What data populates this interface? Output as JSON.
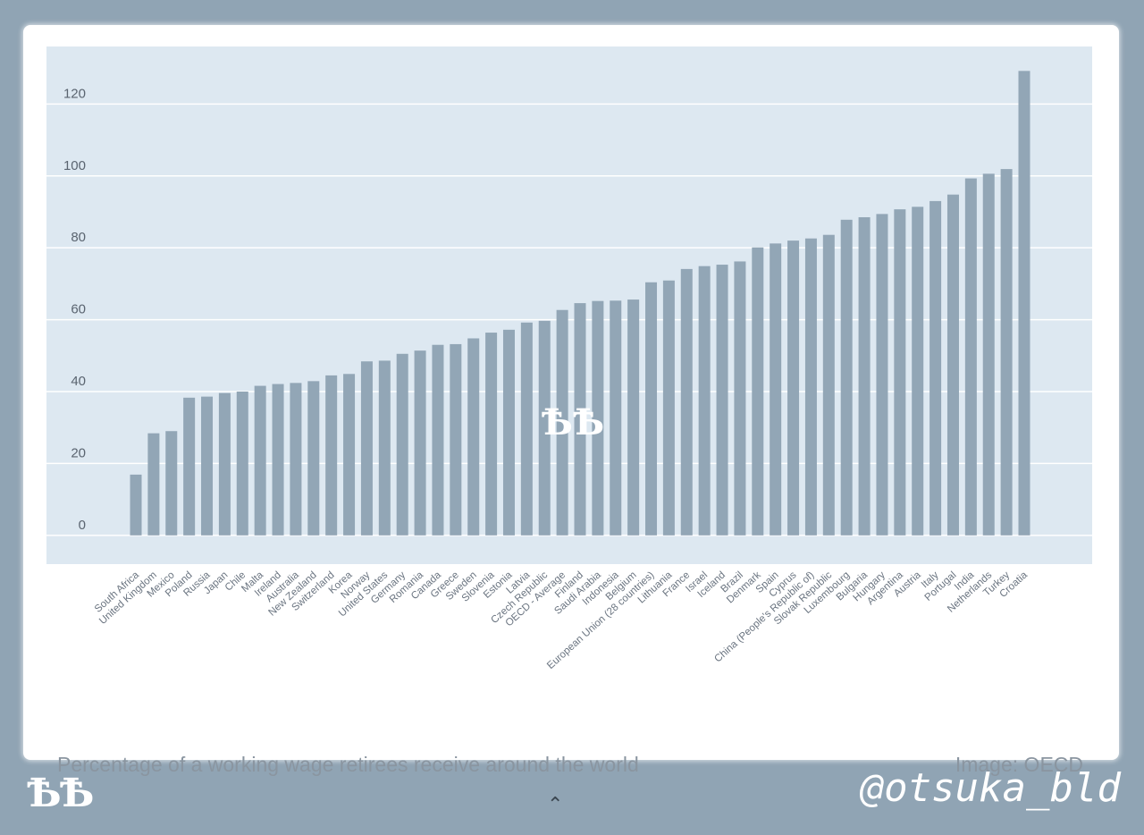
{
  "chart_data": {
    "type": "bar",
    "title": "",
    "xlabel": "",
    "ylabel": "",
    "ylim": [
      -8,
      136
    ],
    "yticks": [
      0,
      20,
      40,
      60,
      80,
      100,
      120
    ],
    "grid": true,
    "bar_color": "#92a6b6",
    "plot_background": "#dde8f1",
    "categories": [
      "South Africa",
      "United Kingdom",
      "Mexico",
      "Poland",
      "Russia",
      "Japan",
      "Chile",
      "Malta",
      "Ireland",
      "Australia",
      "New Zealand",
      "Switzerland",
      "Korea",
      "Norway",
      "United States",
      "Germany",
      "Romania",
      "Canada",
      "Greece",
      "Sweden",
      "Slovenia",
      "Estonia",
      "Latvia",
      "Czech Republic",
      "OECD - Average",
      "Finland",
      "Saudi Arabia",
      "Indonesia",
      "Belgium",
      "European Union (28 countries)",
      "Lithuania",
      "France",
      "Israel",
      "Iceland",
      "Brazil",
      "Denmark",
      "Spain",
      "Cyprus",
      "China (People's Republic of)",
      "Slovak Republic",
      "Luxembourg",
      "Bulgaria",
      "Hungary",
      "Argentina",
      "Austria",
      "Italy",
      "Portugal",
      "India",
      "Netherlands",
      "Turkey",
      "Croatia"
    ],
    "values": [
      16.9,
      28.4,
      29.0,
      38.3,
      38.6,
      39.6,
      40.0,
      41.6,
      42.1,
      42.4,
      42.9,
      44.5,
      44.9,
      48.4,
      48.6,
      50.5,
      51.4,
      53.0,
      53.2,
      54.8,
      56.4,
      57.2,
      59.2,
      59.7,
      62.7,
      64.6,
      65.2,
      65.3,
      65.6,
      70.4,
      70.9,
      74.1,
      74.9,
      75.3,
      76.2,
      80.1,
      81.2,
      82.0,
      82.6,
      83.6,
      87.8,
      88.5,
      89.4,
      90.7,
      91.4,
      93.0,
      94.8,
      99.3,
      100.6,
      101.9,
      129.2
    ]
  },
  "watermark": "ѢѢ",
  "caption_left": "Percentage of a working wage retirees receive around the world",
  "caption_right": "Image: OECD",
  "logo_text": "ѢѢ",
  "chevron_icon": "chevron-up-icon",
  "chevron_glyph": "⌃",
  "handle": "@otsuka_bld"
}
